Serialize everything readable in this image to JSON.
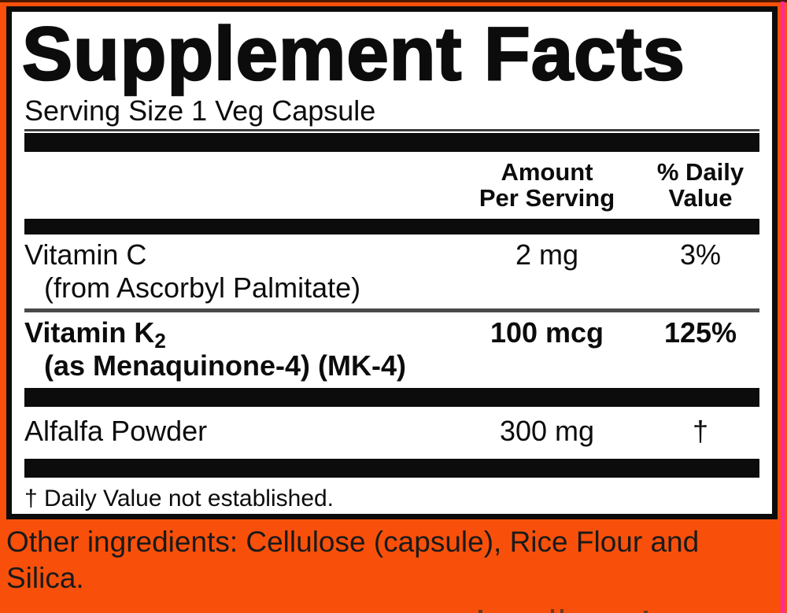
{
  "colors": {
    "background_orange": "#F8500A",
    "pink_strip": "#FF29A2",
    "panel_background": "#FFFFFF",
    "ink_black": "#0C0C0C",
    "separator_gray": "#4A4A4A"
  },
  "panel": {
    "title": "Supplement Facts",
    "serving_size": "Serving Size 1 Veg Capsule",
    "header": {
      "amount_line1": "Amount",
      "amount_line2": "Per Serving",
      "dv_line1": "% Daily",
      "dv_line2": "Value"
    },
    "rows": [
      {
        "name": "Vitamin C",
        "name_subscript": "",
        "detail": "(from Ascorbyl Palmitate)",
        "amount": "2 mg",
        "daily_value": "3%"
      },
      {
        "name": "Vitamin K",
        "name_subscript": "2",
        "detail": "(as Menaquinone-4) (MK-4)",
        "amount": "100 mcg",
        "daily_value": "125%"
      },
      {
        "name": "Alfalfa Powder",
        "name_subscript": "",
        "detail": "",
        "amount": "300 mg",
        "daily_value": "†"
      }
    ],
    "footnote": "† Daily Value not established."
  },
  "other_ingredients": "Other ingredients: Cellulose (capsule), Rice Flour and Silica."
}
